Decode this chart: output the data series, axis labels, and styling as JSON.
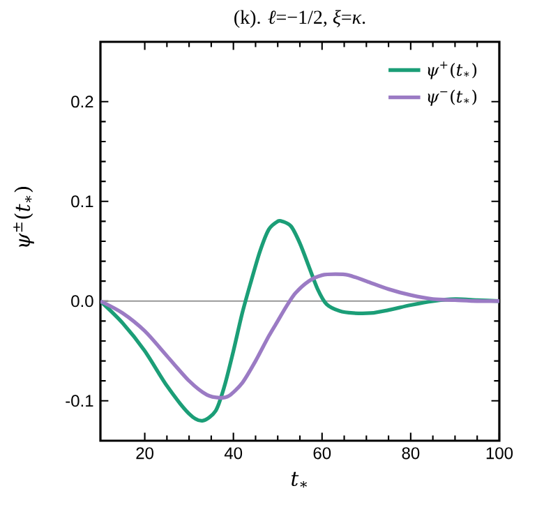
{
  "chart_data": {
    "type": "line",
    "title": "(k). *ℓ*=−1/2, *ξ*=*κ*.",
    "xlabel": "*t*$_{∗}$",
    "ylabel": "*ψ*$^{±}$(*t*$_{∗}$)",
    "xlim": [
      10,
      100
    ],
    "ylim": [
      -0.14,
      0.26
    ],
    "xticks": [
      20,
      40,
      60,
      80,
      100
    ],
    "yticks": [
      -0.1,
      {
        "value": 0,
        "label": "0.0"
      },
      0.1,
      0.2
    ],
    "legend": "top right",
    "grid": false,
    "ref_lines": [
      {
        "axis": "y",
        "value": 0,
        "color": "#999999"
      }
    ],
    "series": [
      {
        "name": "*ψ*$^{+}$(*t*$_{∗}$)",
        "color": "#1b9e77",
        "x": [
          10,
          15,
          20,
          25,
          30,
          33,
          36,
          38,
          40,
          42,
          44,
          46,
          48,
          50,
          51,
          53,
          55,
          57,
          59,
          61,
          64,
          67,
          71,
          75,
          80,
          85,
          90,
          95,
          100
        ],
        "values": [
          0,
          -0.022,
          -0.05,
          -0.085,
          -0.113,
          -0.12,
          -0.11,
          -0.085,
          -0.05,
          -0.012,
          0.02,
          0.05,
          0.072,
          0.08,
          0.08,
          0.075,
          0.058,
          0.035,
          0.012,
          -0.003,
          -0.01,
          -0.012,
          -0.012,
          -0.009,
          -0.004,
          0.0,
          0.002,
          0.001,
          0
        ]
      },
      {
        "name": "*ψ*$^{−}$(*t*$_{∗}$)",
        "color": "#9b7bc4",
        "x": [
          10,
          15,
          20,
          25,
          30,
          34,
          37,
          39,
          42,
          45,
          48,
          50,
          52,
          54,
          57,
          60,
          63,
          66,
          70,
          75,
          80,
          85,
          90,
          95,
          100
        ],
        "values": [
          0,
          -0.012,
          -0.03,
          -0.055,
          -0.08,
          -0.094,
          -0.097,
          -0.095,
          -0.082,
          -0.06,
          -0.035,
          -0.02,
          -0.005,
          0.008,
          0.02,
          0.026,
          0.027,
          0.026,
          0.02,
          0.012,
          0.006,
          0.002,
          0.001,
          0.0,
          0
        ]
      }
    ]
  }
}
